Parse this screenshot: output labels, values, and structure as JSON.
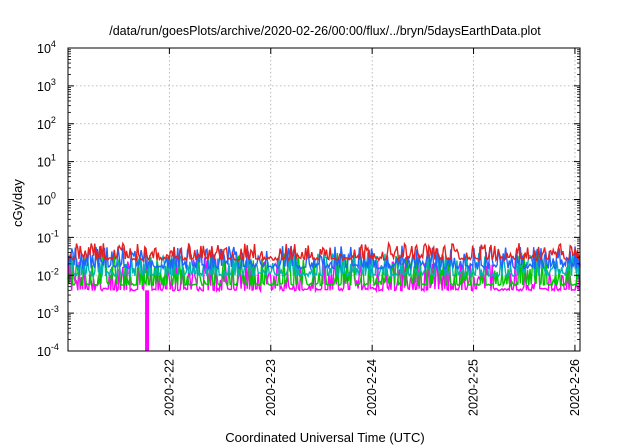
{
  "chart_data": {
    "type": "line",
    "title": "/data/run/goesPlots/archive/2020-02-26/00:00/flux/../bryn/5daysEarthData.plot",
    "xlabel": "Coordinated Universal Time (UTC)",
    "ylabel": "cGy/day",
    "x_tick_labels": [
      "2020-2-22",
      "2020-2-23",
      "2020-2-24",
      "2020-2-25",
      "2020-2-26"
    ],
    "x_tick_days": [
      1.0,
      2.0,
      3.0,
      4.0,
      5.0
    ],
    "xlim_days_since_2020_02_21": [
      0.0,
      5.05
    ],
    "y_scale": "log",
    "ylim": [
      0.0001,
      10000
    ],
    "y_ticks": [
      {
        "value": 0.0001,
        "base": "10",
        "exp": "-4"
      },
      {
        "value": 0.001,
        "base": "10",
        "exp": "-3"
      },
      {
        "value": 0.01,
        "base": "10",
        "exp": "-2"
      },
      {
        "value": 0.1,
        "base": "10",
        "exp": "-1"
      },
      {
        "value": 1,
        "base": "10",
        "exp": "0"
      },
      {
        "value": 10,
        "base": "10",
        "exp": "1"
      },
      {
        "value": 100,
        "base": "10",
        "exp": "2"
      },
      {
        "value": 1000,
        "base": "10",
        "exp": "3"
      },
      {
        "value": 10000,
        "base": "10",
        "exp": "4"
      }
    ],
    "grid": true,
    "series": [
      {
        "color": "#ff00ff",
        "level": 0.0045,
        "spread": [
          0.0035,
          0.03
        ]
      },
      {
        "color": "#00c800",
        "level": 0.006,
        "spread": [
          0.005,
          0.04
        ]
      },
      {
        "color": "#00b4b4",
        "level": 0.012,
        "spread": [
          0.008,
          0.04
        ]
      },
      {
        "color": "#1e64ff",
        "level": 0.02,
        "spread": [
          0.012,
          0.06
        ]
      },
      {
        "color": "#e61e1e",
        "level": 0.03,
        "spread": [
          0.022,
          0.07
        ]
      }
    ],
    "dropout": {
      "day": 0.78,
      "value": 0.0001,
      "color": "#ff00ff"
    }
  }
}
